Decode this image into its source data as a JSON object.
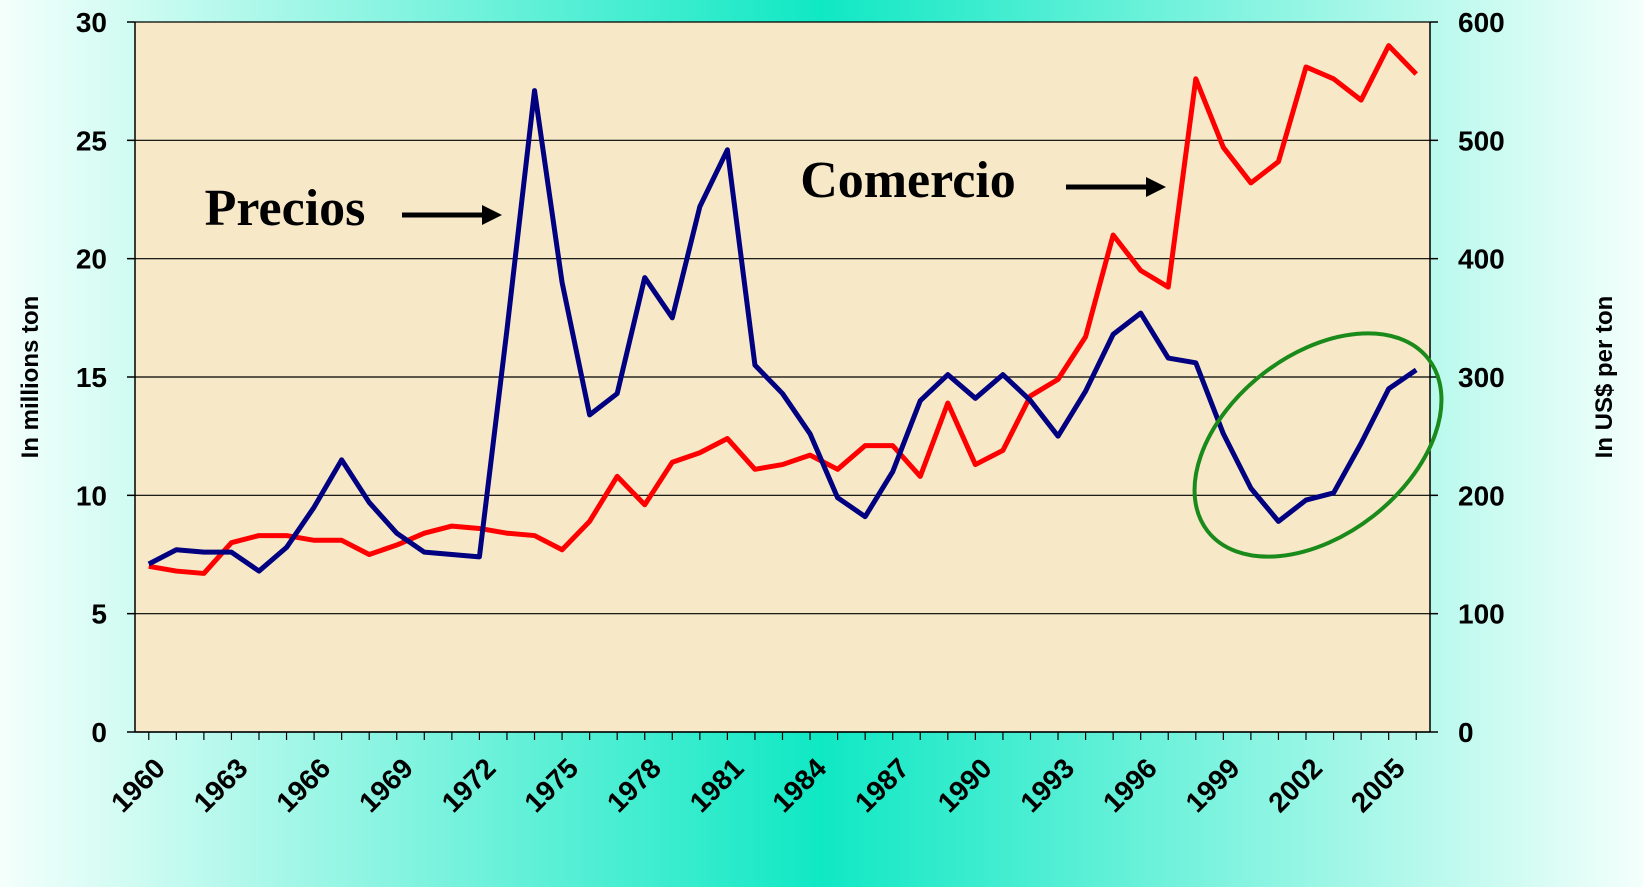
{
  "chart_data": {
    "type": "line",
    "x": [
      1960,
      1961,
      1962,
      1963,
      1964,
      1965,
      1966,
      1967,
      1968,
      1969,
      1970,
      1971,
      1972,
      1973,
      1974,
      1975,
      1976,
      1977,
      1978,
      1979,
      1980,
      1981,
      1982,
      1983,
      1984,
      1985,
      1986,
      1987,
      1988,
      1989,
      1990,
      1991,
      1992,
      1993,
      1994,
      1995,
      1996,
      1997,
      1998,
      1999,
      2000,
      2001,
      2002,
      2003,
      2004,
      2005,
      2006
    ],
    "xlim": [
      1959.5,
      2006.5
    ],
    "xticks": [
      1960,
      1963,
      1966,
      1969,
      1972,
      1975,
      1978,
      1981,
      1984,
      1987,
      1990,
      1993,
      1996,
      1999,
      2002,
      2005
    ],
    "ylabel": "In millions ton",
    "y2label": "In US$ per ton",
    "ylim": [
      0,
      30
    ],
    "yticks": [
      0,
      5,
      10,
      15,
      20,
      25,
      30
    ],
    "y2lim": [
      0,
      600
    ],
    "y2ticks": [
      0,
      100,
      200,
      300,
      400,
      500,
      600
    ],
    "grid": true,
    "annotations": [
      "Precios",
      "Comercio"
    ],
    "series": [
      {
        "name": "Comercio",
        "color": "#ff0000",
        "axis": "y",
        "values": [
          7.0,
          6.8,
          6.7,
          8.0,
          8.3,
          8.3,
          8.1,
          8.1,
          7.5,
          7.9,
          8.4,
          8.7,
          8.6,
          8.4,
          8.3,
          7.7,
          8.9,
          10.8,
          9.6,
          11.4,
          11.8,
          12.4,
          11.1,
          11.3,
          11.7,
          11.1,
          12.1,
          12.1,
          10.8,
          13.9,
          11.3,
          11.9,
          14.2,
          14.9,
          16.7,
          21.0,
          19.5,
          18.8,
          27.6,
          24.7,
          23.2,
          24.1,
          28.1,
          27.6,
          26.7,
          29.0,
          27.8
        ]
      },
      {
        "name": "Precios",
        "color": "#000080",
        "axis": "y2",
        "values": [
          142,
          154,
          152,
          152,
          136,
          156,
          190,
          230,
          194,
          168,
          152,
          150,
          148,
          340,
          542,
          380,
          268,
          286,
          384,
          350,
          444,
          492,
          310,
          286,
          252,
          198,
          182,
          220,
          280,
          302,
          282,
          302,
          280,
          250,
          288,
          336,
          354,
          316,
          312,
          252,
          206,
          178,
          196,
          202,
          244,
          290,
          306
        ]
      }
    ]
  }
}
